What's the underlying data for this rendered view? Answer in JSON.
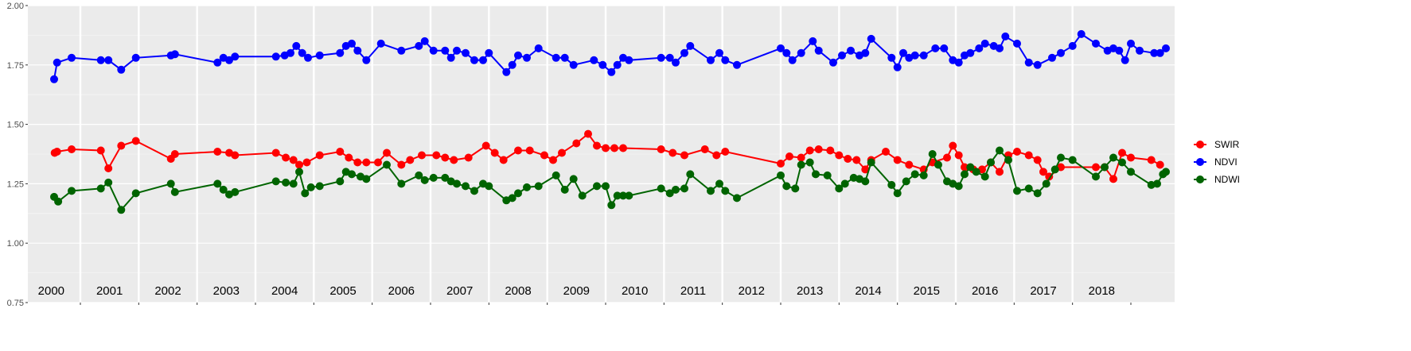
{
  "chart_data": {
    "type": "line",
    "title": "",
    "xlabel": "",
    "ylabel": "",
    "ylim": [
      0.75,
      2.0
    ],
    "xlim": [
      1999.6,
      2019.25
    ],
    "yticks": [
      0.75,
      1.0,
      1.25,
      1.5,
      1.75,
      2.0
    ],
    "ytick_labels": [
      "0.75",
      "1.00",
      "1.25",
      "1.50",
      "1.75",
      "2.00"
    ],
    "year_labels": [
      "2000",
      "2001",
      "2002",
      "2003",
      "2004",
      "2005",
      "2006",
      "2007",
      "2008",
      "2009",
      "2010",
      "2011",
      "2012",
      "2013",
      "2014",
      "2015",
      "2016",
      "2017",
      "2018"
    ],
    "grid": true,
    "legend_position": "right",
    "background": "#ebebeb",
    "series": [
      {
        "name": "SWIR",
        "color": "#ff0000",
        "points": [
          [
            2000.06,
            1.38
          ],
          [
            2000.1,
            1.385
          ],
          [
            2000.35,
            1.395
          ],
          [
            2000.85,
            1.39
          ],
          [
            2000.98,
            1.315
          ],
          [
            2001.2,
            1.41
          ],
          [
            2001.45,
            1.43
          ],
          [
            2002.05,
            1.355
          ],
          [
            2002.12,
            1.375
          ],
          [
            2002.85,
            1.385
          ],
          [
            2003.05,
            1.38
          ],
          [
            2003.15,
            1.37
          ],
          [
            2003.85,
            1.38
          ],
          [
            2004.02,
            1.36
          ],
          [
            2004.15,
            1.35
          ],
          [
            2004.25,
            1.33
          ],
          [
            2004.38,
            1.34
          ],
          [
            2004.6,
            1.37
          ],
          [
            2004.95,
            1.385
          ],
          [
            2005.1,
            1.36
          ],
          [
            2005.25,
            1.34
          ],
          [
            2005.4,
            1.34
          ],
          [
            2005.6,
            1.34
          ],
          [
            2005.75,
            1.38
          ],
          [
            2006.0,
            1.33
          ],
          [
            2006.15,
            1.35
          ],
          [
            2006.35,
            1.37
          ],
          [
            2006.6,
            1.37
          ],
          [
            2006.75,
            1.36
          ],
          [
            2006.9,
            1.35
          ],
          [
            2007.15,
            1.36
          ],
          [
            2007.45,
            1.41
          ],
          [
            2007.6,
            1.38
          ],
          [
            2007.75,
            1.35
          ],
          [
            2008.0,
            1.39
          ],
          [
            2008.2,
            1.39
          ],
          [
            2008.45,
            1.37
          ],
          [
            2008.6,
            1.35
          ],
          [
            2008.75,
            1.38
          ],
          [
            2009.0,
            1.42
          ],
          [
            2009.2,
            1.46
          ],
          [
            2009.35,
            1.41
          ],
          [
            2009.5,
            1.4
          ],
          [
            2009.65,
            1.4
          ],
          [
            2009.8,
            1.4
          ],
          [
            2010.45,
            1.395
          ],
          [
            2010.65,
            1.38
          ],
          [
            2010.85,
            1.37
          ],
          [
            2011.2,
            1.395
          ],
          [
            2011.4,
            1.37
          ],
          [
            2011.55,
            1.385
          ],
          [
            2012.5,
            1.335
          ],
          [
            2012.65,
            1.365
          ],
          [
            2012.85,
            1.36
          ],
          [
            2013.0,
            1.39
          ],
          [
            2013.15,
            1.395
          ],
          [
            2013.35,
            1.39
          ],
          [
            2013.5,
            1.37
          ],
          [
            2013.65,
            1.355
          ],
          [
            2013.8,
            1.35
          ],
          [
            2013.95,
            1.31
          ],
          [
            2014.05,
            1.35
          ],
          [
            2014.3,
            1.385
          ],
          [
            2014.5,
            1.35
          ],
          [
            2014.7,
            1.33
          ],
          [
            2014.95,
            1.31
          ],
          [
            2015.1,
            1.34
          ],
          [
            2015.35,
            1.36
          ],
          [
            2015.45,
            1.41
          ],
          [
            2015.55,
            1.37
          ],
          [
            2015.65,
            1.32
          ],
          [
            2015.8,
            1.31
          ],
          [
            2015.95,
            1.31
          ],
          [
            2016.1,
            1.34
          ],
          [
            2016.25,
            1.3
          ],
          [
            2016.4,
            1.37
          ],
          [
            2016.55,
            1.385
          ],
          [
            2016.75,
            1.37
          ],
          [
            2016.9,
            1.35
          ],
          [
            2017.0,
            1.3
          ],
          [
            2017.1,
            1.28
          ],
          [
            2017.3,
            1.32
          ],
          [
            2017.9,
            1.32
          ],
          [
            2018.05,
            1.32
          ],
          [
            2018.2,
            1.27
          ],
          [
            2018.35,
            1.38
          ],
          [
            2018.5,
            1.36
          ],
          [
            2018.85,
            1.35
          ],
          [
            2019.0,
            1.33
          ]
        ]
      },
      {
        "name": "NDVI",
        "color": "#0000ff",
        "points": [
          [
            2000.05,
            1.69
          ],
          [
            2000.1,
            1.76
          ],
          [
            2000.35,
            1.78
          ],
          [
            2000.85,
            1.77
          ],
          [
            2000.98,
            1.77
          ],
          [
            2001.2,
            1.73
          ],
          [
            2001.45,
            1.78
          ],
          [
            2002.05,
            1.79
          ],
          [
            2002.12,
            1.795
          ],
          [
            2002.85,
            1.76
          ],
          [
            2002.95,
            1.78
          ],
          [
            2003.05,
            1.77
          ],
          [
            2003.15,
            1.785
          ],
          [
            2003.85,
            1.785
          ],
          [
            2004.0,
            1.79
          ],
          [
            2004.1,
            1.8
          ],
          [
            2004.2,
            1.83
          ],
          [
            2004.3,
            1.8
          ],
          [
            2004.4,
            1.78
          ],
          [
            2004.6,
            1.79
          ],
          [
            2004.95,
            1.8
          ],
          [
            2005.05,
            1.83
          ],
          [
            2005.15,
            1.84
          ],
          [
            2005.25,
            1.81
          ],
          [
            2005.4,
            1.77
          ],
          [
            2005.65,
            1.84
          ],
          [
            2006.0,
            1.81
          ],
          [
            2006.3,
            1.83
          ],
          [
            2006.4,
            1.85
          ],
          [
            2006.55,
            1.81
          ],
          [
            2006.75,
            1.81
          ],
          [
            2006.85,
            1.78
          ],
          [
            2006.95,
            1.81
          ],
          [
            2007.1,
            1.8
          ],
          [
            2007.25,
            1.77
          ],
          [
            2007.4,
            1.77
          ],
          [
            2007.5,
            1.8
          ],
          [
            2007.8,
            1.72
          ],
          [
            2007.9,
            1.75
          ],
          [
            2008.0,
            1.79
          ],
          [
            2008.15,
            1.78
          ],
          [
            2008.35,
            1.82
          ],
          [
            2008.65,
            1.78
          ],
          [
            2008.8,
            1.78
          ],
          [
            2008.95,
            1.75
          ],
          [
            2009.3,
            1.77
          ],
          [
            2009.45,
            1.75
          ],
          [
            2009.6,
            1.72
          ],
          [
            2009.7,
            1.75
          ],
          [
            2009.8,
            1.78
          ],
          [
            2009.9,
            1.77
          ],
          [
            2010.45,
            1.78
          ],
          [
            2010.6,
            1.78
          ],
          [
            2010.7,
            1.76
          ],
          [
            2010.85,
            1.8
          ],
          [
            2010.95,
            1.83
          ],
          [
            2011.3,
            1.77
          ],
          [
            2011.45,
            1.8
          ],
          [
            2011.55,
            1.77
          ],
          [
            2011.75,
            1.75
          ],
          [
            2012.5,
            1.82
          ],
          [
            2012.6,
            1.8
          ],
          [
            2012.7,
            1.77
          ],
          [
            2012.85,
            1.8
          ],
          [
            2013.05,
            1.85
          ],
          [
            2013.15,
            1.81
          ],
          [
            2013.4,
            1.76
          ],
          [
            2013.55,
            1.79
          ],
          [
            2013.7,
            1.81
          ],
          [
            2013.85,
            1.79
          ],
          [
            2013.95,
            1.8
          ],
          [
            2014.05,
            1.86
          ],
          [
            2014.4,
            1.78
          ],
          [
            2014.5,
            1.74
          ],
          [
            2014.6,
            1.8
          ],
          [
            2014.7,
            1.78
          ],
          [
            2014.8,
            1.79
          ],
          [
            2014.95,
            1.79
          ],
          [
            2015.15,
            1.82
          ],
          [
            2015.3,
            1.82
          ],
          [
            2015.45,
            1.77
          ],
          [
            2015.55,
            1.76
          ],
          [
            2015.65,
            1.79
          ],
          [
            2015.75,
            1.8
          ],
          [
            2015.9,
            1.82
          ],
          [
            2016.0,
            1.84
          ],
          [
            2016.15,
            1.83
          ],
          [
            2016.25,
            1.82
          ],
          [
            2016.35,
            1.87
          ],
          [
            2016.55,
            1.84
          ],
          [
            2016.75,
            1.76
          ],
          [
            2016.9,
            1.75
          ],
          [
            2017.15,
            1.78
          ],
          [
            2017.3,
            1.8
          ],
          [
            2017.5,
            1.83
          ],
          [
            2017.65,
            1.88
          ],
          [
            2017.9,
            1.84
          ],
          [
            2018.1,
            1.81
          ],
          [
            2018.2,
            1.82
          ],
          [
            2018.3,
            1.81
          ],
          [
            2018.4,
            1.77
          ],
          [
            2018.5,
            1.84
          ],
          [
            2018.65,
            1.81
          ],
          [
            2018.9,
            1.8
          ],
          [
            2019.0,
            1.8
          ],
          [
            2019.1,
            1.82
          ]
        ]
      },
      {
        "name": "NDWI",
        "color": "#006400",
        "points": [
          [
            2000.05,
            1.195
          ],
          [
            2000.12,
            1.175
          ],
          [
            2000.35,
            1.22
          ],
          [
            2000.85,
            1.23
          ],
          [
            2000.98,
            1.255
          ],
          [
            2001.2,
            1.14
          ],
          [
            2001.45,
            1.21
          ],
          [
            2002.05,
            1.25
          ],
          [
            2002.12,
            1.215
          ],
          [
            2002.85,
            1.25
          ],
          [
            2002.95,
            1.225
          ],
          [
            2003.05,
            1.205
          ],
          [
            2003.15,
            1.215
          ],
          [
            2003.85,
            1.26
          ],
          [
            2004.02,
            1.255
          ],
          [
            2004.15,
            1.25
          ],
          [
            2004.25,
            1.3
          ],
          [
            2004.35,
            1.21
          ],
          [
            2004.45,
            1.235
          ],
          [
            2004.6,
            1.24
          ],
          [
            2004.95,
            1.26
          ],
          [
            2005.05,
            1.3
          ],
          [
            2005.15,
            1.29
          ],
          [
            2005.3,
            1.28
          ],
          [
            2005.4,
            1.27
          ],
          [
            2005.75,
            1.33
          ],
          [
            2006.0,
            1.25
          ],
          [
            2006.3,
            1.285
          ],
          [
            2006.4,
            1.265
          ],
          [
            2006.55,
            1.275
          ],
          [
            2006.75,
            1.275
          ],
          [
            2006.85,
            1.26
          ],
          [
            2006.95,
            1.25
          ],
          [
            2007.1,
            1.24
          ],
          [
            2007.25,
            1.22
          ],
          [
            2007.4,
            1.25
          ],
          [
            2007.5,
            1.24
          ],
          [
            2007.8,
            1.18
          ],
          [
            2007.9,
            1.19
          ],
          [
            2008.0,
            1.21
          ],
          [
            2008.15,
            1.235
          ],
          [
            2008.35,
            1.24
          ],
          [
            2008.65,
            1.285
          ],
          [
            2008.8,
            1.225
          ],
          [
            2008.95,
            1.27
          ],
          [
            2009.1,
            1.2
          ],
          [
            2009.35,
            1.24
          ],
          [
            2009.5,
            1.24
          ],
          [
            2009.6,
            1.16
          ],
          [
            2009.7,
            1.2
          ],
          [
            2009.8,
            1.2
          ],
          [
            2009.9,
            1.2
          ],
          [
            2010.45,
            1.23
          ],
          [
            2010.6,
            1.21
          ],
          [
            2010.7,
            1.225
          ],
          [
            2010.85,
            1.23
          ],
          [
            2010.95,
            1.29
          ],
          [
            2011.3,
            1.22
          ],
          [
            2011.45,
            1.25
          ],
          [
            2011.55,
            1.22
          ],
          [
            2011.75,
            1.19
          ],
          [
            2012.5,
            1.285
          ],
          [
            2012.6,
            1.24
          ],
          [
            2012.75,
            1.23
          ],
          [
            2012.85,
            1.33
          ],
          [
            2013.0,
            1.34
          ],
          [
            2013.1,
            1.29
          ],
          [
            2013.3,
            1.285
          ],
          [
            2013.5,
            1.23
          ],
          [
            2013.6,
            1.25
          ],
          [
            2013.75,
            1.275
          ],
          [
            2013.85,
            1.27
          ],
          [
            2013.95,
            1.26
          ],
          [
            2014.05,
            1.34
          ],
          [
            2014.4,
            1.245
          ],
          [
            2014.5,
            1.21
          ],
          [
            2014.65,
            1.26
          ],
          [
            2014.8,
            1.29
          ],
          [
            2014.95,
            1.285
          ],
          [
            2015.1,
            1.375
          ],
          [
            2015.2,
            1.33
          ],
          [
            2015.35,
            1.26
          ],
          [
            2015.45,
            1.25
          ],
          [
            2015.55,
            1.24
          ],
          [
            2015.65,
            1.29
          ],
          [
            2015.75,
            1.32
          ],
          [
            2015.85,
            1.3
          ],
          [
            2016.0,
            1.28
          ],
          [
            2016.1,
            1.34
          ],
          [
            2016.25,
            1.39
          ],
          [
            2016.4,
            1.35
          ],
          [
            2016.55,
            1.22
          ],
          [
            2016.75,
            1.23
          ],
          [
            2016.9,
            1.21
          ],
          [
            2017.05,
            1.25
          ],
          [
            2017.2,
            1.31
          ],
          [
            2017.3,
            1.36
          ],
          [
            2017.5,
            1.35
          ],
          [
            2017.9,
            1.28
          ],
          [
            2018.05,
            1.32
          ],
          [
            2018.2,
            1.36
          ],
          [
            2018.35,
            1.34
          ],
          [
            2018.5,
            1.3
          ],
          [
            2018.85,
            1.245
          ],
          [
            2018.95,
            1.25
          ],
          [
            2019.05,
            1.29
          ],
          [
            2019.1,
            1.3
          ]
        ]
      }
    ]
  }
}
